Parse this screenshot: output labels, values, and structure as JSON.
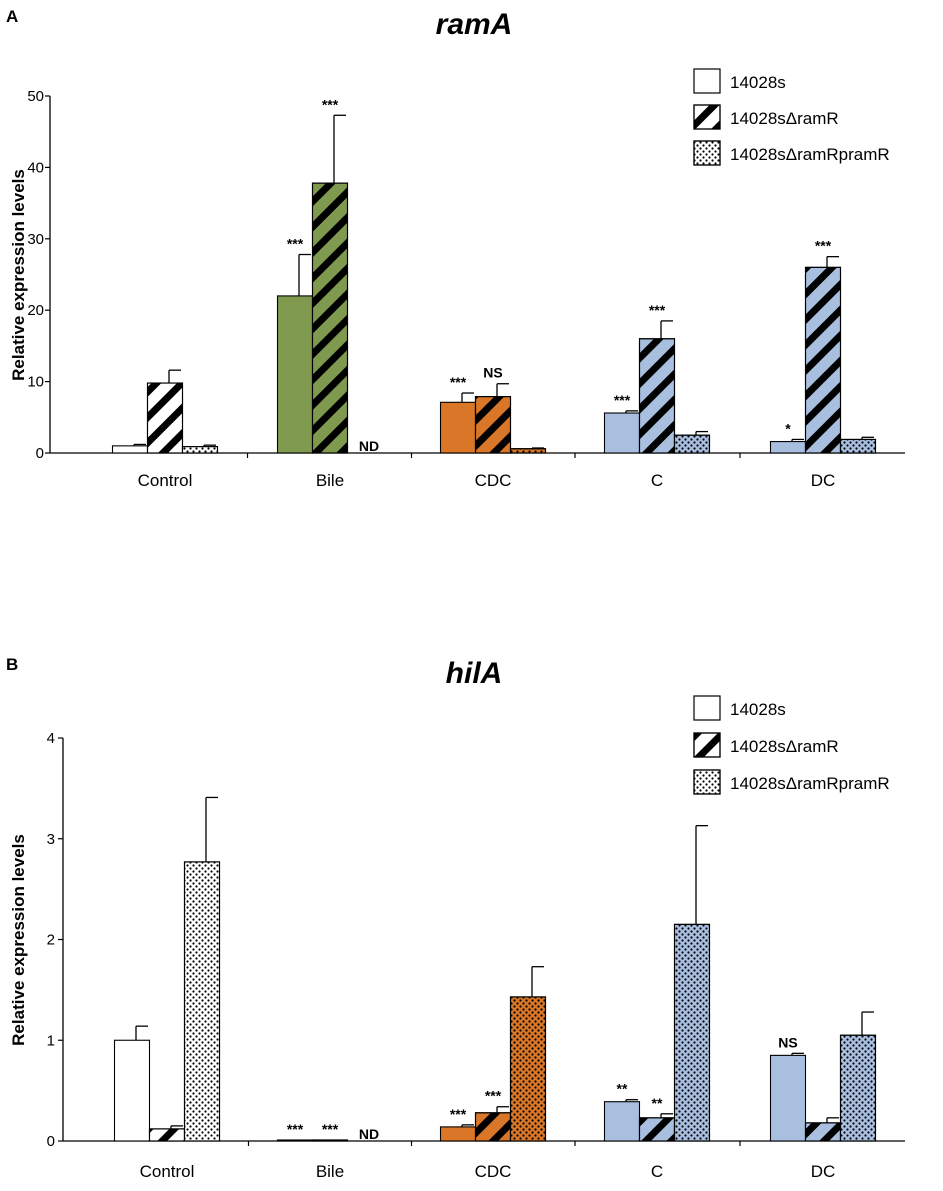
{
  "legend": [
    "14028s",
    "14028sΔramR",
    "14028sΔramRpramR"
  ],
  "colors": {
    "control": "#ffffff",
    "bile": "#7f9a4e",
    "cdc": "#d97627",
    "c": "#a9bfe0",
    "dc": "#a9bfe0",
    "stroke": "#000000"
  },
  "chart_data": [
    {
      "panel": "A",
      "type": "bar",
      "title": "ramA",
      "xlabel": "",
      "ylabel": "Relative expression levels",
      "ylim": [
        0,
        50
      ],
      "yticks": [
        0,
        10,
        20,
        30,
        40,
        50
      ],
      "categories": [
        "Control",
        "Bile",
        "CDC",
        "C",
        "DC"
      ],
      "series": [
        {
          "name": "14028s",
          "values": [
            1,
            22,
            7.1,
            5.6,
            1.6
          ],
          "errors": [
            0.2,
            5.8,
            1.3,
            0.3,
            0.3
          ],
          "sig": [
            "",
            "***",
            "***",
            "***",
            "*"
          ]
        },
        {
          "name": "14028sΔramR",
          "values": [
            9.8,
            37.8,
            7.9,
            16,
            26
          ],
          "errors": [
            1.8,
            9.5,
            1.8,
            2.5,
            1.5
          ],
          "sig": [
            "",
            "***",
            "NS",
            "***",
            "***"
          ]
        },
        {
          "name": "14028sΔramRpramR",
          "values": [
            0.9,
            0,
            0.6,
            2.5,
            1.9
          ],
          "errors": [
            0.2,
            0,
            0.1,
            0.5,
            0.3
          ],
          "sig": [
            "",
            "ND",
            "",
            "",
            ""
          ]
        }
      ]
    },
    {
      "panel": "B",
      "type": "bar",
      "title": "hilA",
      "xlabel": "",
      "ylabel": "Relative expression levels",
      "ylim": [
        0,
        4
      ],
      "yticks": [
        0,
        1,
        2,
        3,
        4
      ],
      "categories": [
        "Control",
        "Bile",
        "CDC",
        "C",
        "DC"
      ],
      "series": [
        {
          "name": "14028s",
          "values": [
            1,
            0.01,
            0.14,
            0.39,
            0.85
          ],
          "errors": [
            0.14,
            0,
            0.02,
            0.02,
            0.02
          ],
          "sig": [
            "",
            "***",
            "***",
            "**",
            "NS"
          ]
        },
        {
          "name": "14028sΔramR",
          "values": [
            0.12,
            0.01,
            0.28,
            0.23,
            0.18
          ],
          "errors": [
            0.03,
            0,
            0.06,
            0.04,
            0.05
          ],
          "sig": [
            "",
            "***",
            "***",
            "**",
            ""
          ]
        },
        {
          "name": "14028sΔramRpramR",
          "values": [
            2.77,
            0,
            1.43,
            2.15,
            1.05
          ],
          "errors": [
            0.64,
            0,
            0.3,
            0.98,
            0.23
          ],
          "sig": [
            "",
            "ND",
            "",
            "",
            ""
          ]
        }
      ]
    }
  ]
}
